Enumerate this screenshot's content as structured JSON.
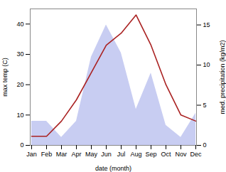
{
  "chart_data": {
    "type": "line",
    "xlabel": "date (month)",
    "ylabel": "max temp (C)",
    "y2label": "med. precipitation (kg/m2)",
    "categories": [
      "Jan",
      "Feb",
      "Mar",
      "Apr",
      "May",
      "Jun",
      "Jul",
      "Aug",
      "Sep",
      "Oct",
      "Nov",
      "Dec"
    ],
    "series": [
      {
        "type": "area",
        "axis": "y2",
        "color": "#c8cdf2",
        "values": [
          3.0,
          3.0,
          1.0,
          3.0,
          11.0,
          15.0,
          11.5,
          4.5,
          9.0,
          2.5,
          1.0,
          4.0
        ]
      },
      {
        "type": "line",
        "color": "#aa2222",
        "values": [
          3,
          3,
          8,
          15,
          24,
          33,
          37,
          43,
          33,
          20,
          10,
          8
        ]
      }
    ],
    "ylim": [
      0,
      45
    ],
    "yticks": [
      0,
      10,
      20,
      30,
      40
    ],
    "y2lim": [
      0,
      17
    ],
    "y2ticks": [
      0,
      5,
      10,
      15
    ],
    "grid": false
  }
}
